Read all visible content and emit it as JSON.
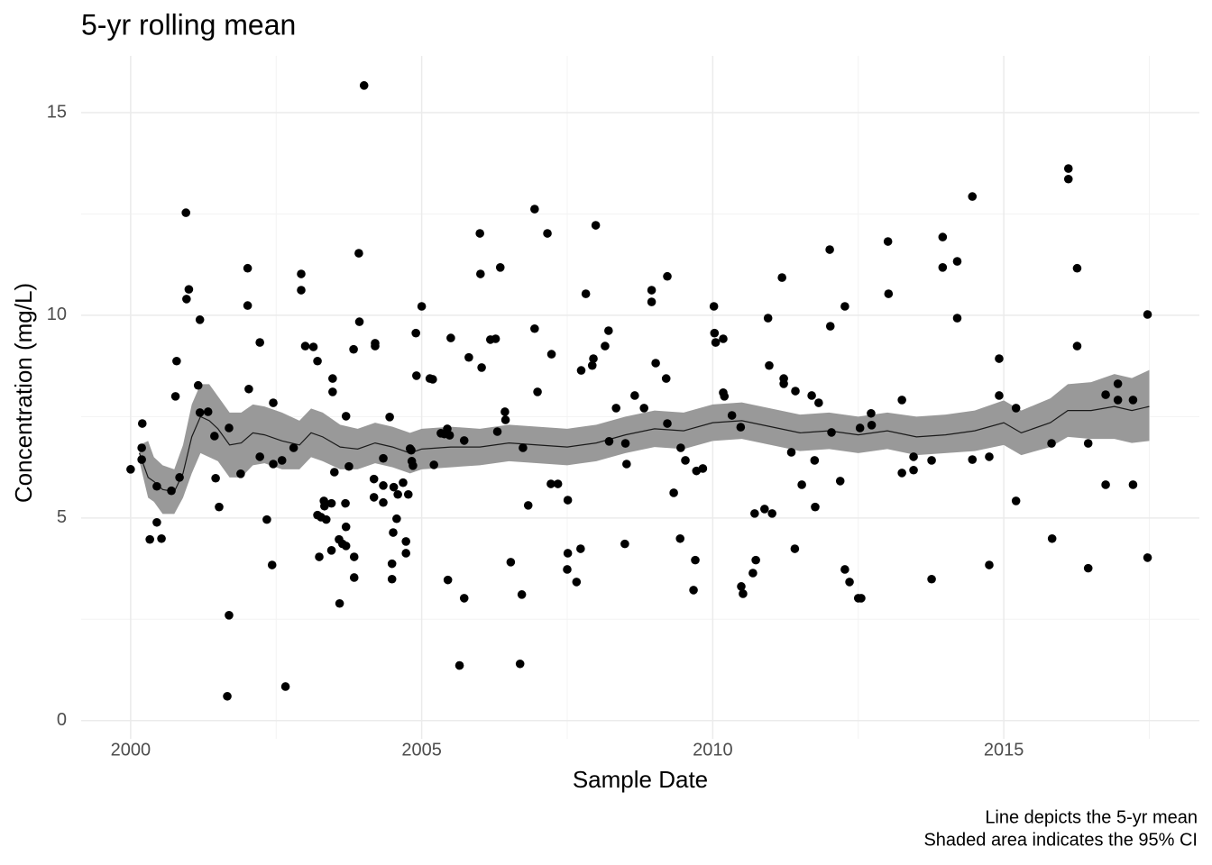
{
  "chart_data": {
    "type": "scatter",
    "title": "5-yr rolling mean",
    "xlabel": "Sample Date",
    "ylabel": "Concentration (mg/L)",
    "caption": [
      "Line depicts the 5-yr mean",
      "Shaded area indicates the 95% CI"
    ],
    "xlim": [
      1999.15,
      2018.36
    ],
    "ylim": [
      -0.45,
      16.4
    ],
    "xticks": [
      2000,
      2005,
      2010,
      2015
    ],
    "yticks": [
      0,
      5,
      10,
      15
    ],
    "grid": true,
    "color": "#000000",
    "x": [
      2000.0,
      2000.19,
      2000.19,
      2000.2,
      2000.33,
      2000.45,
      2000.45,
      2000.53,
      2000.7,
      2000.77,
      2000.79,
      2000.84,
      2000.95,
      2000.96,
      2001.0,
      2001.16,
      2001.19,
      2001.19,
      2001.33,
      2001.44,
      2001.46,
      2001.52,
      2001.69,
      2001.69,
      2001.66,
      2001.89,
      2002.01,
      2002.01,
      2002.03,
      2002.22,
      2002.22,
      2002.34,
      2002.43,
      2002.45,
      2002.45,
      2002.6,
      2002.66,
      2002.8,
      2002.93,
      2002.93,
      2003.0,
      2003.14,
      2003.21,
      2003.21,
      2003.24,
      2003.27,
      2003.32,
      2003.33,
      2003.36,
      2003.45,
      2003.45,
      2003.47,
      2003.47,
      2003.5,
      2003.58,
      2003.59,
      2003.64,
      2003.69,
      2003.7,
      2003.7,
      2003.7,
      2003.75,
      2003.83,
      2003.84,
      2003.84,
      2003.92,
      2003.93,
      2004.01,
      2004.18,
      2004.18,
      2004.2,
      2004.2,
      2004.34,
      2004.34,
      2004.34,
      2004.45,
      2004.49,
      2004.49,
      2004.51,
      2004.52,
      2004.57,
      2004.59,
      2004.68,
      2004.73,
      2004.73,
      2004.77,
      2004.8,
      2004.82,
      2004.83,
      2004.85,
      2004.9,
      2004.91,
      2005.0,
      2005.14,
      2005.19,
      2005.21,
      2005.33,
      2005.39,
      2005.44,
      2005.45,
      2005.48,
      2005.5,
      2005.65,
      2005.73,
      2005.73,
      2005.81,
      2006.0,
      2006.01,
      2006.03,
      2006.18,
      2006.27,
      2006.3,
      2006.35,
      2006.43,
      2006.44,
      2006.53,
      2006.69,
      2006.72,
      2006.74,
      2006.83,
      2006.94,
      2006.94,
      2006.99,
      2007.16,
      2007.22,
      2007.23,
      2007.34,
      2007.5,
      2007.51,
      2007.51,
      2007.66,
      2007.73,
      2007.74,
      2007.82,
      2007.93,
      2007.95,
      2007.99,
      2008.15,
      2008.21,
      2008.22,
      2008.34,
      2008.49,
      2008.5,
      2008.52,
      2008.66,
      2008.82,
      2008.95,
      2008.95,
      2009.02,
      2009.2,
      2009.22,
      2009.22,
      2009.33,
      2009.44,
      2009.45,
      2009.53,
      2009.67,
      2009.7,
      2009.72,
      2009.83,
      2010.02,
      2010.03,
      2010.05,
      2010.18,
      2010.18,
      2010.2,
      2010.33,
      2010.48,
      2010.49,
      2010.52,
      2010.69,
      2010.72,
      2010.74,
      2010.89,
      2010.95,
      2010.97,
      2011.02,
      2011.19,
      2011.22,
      2011.22,
      2011.35,
      2011.41,
      2011.42,
      2011.53,
      2011.7,
      2011.75,
      2011.76,
      2011.82,
      2012.01,
      2012.02,
      2012.04,
      2012.19,
      2012.27,
      2012.27,
      2012.35,
      2012.5,
      2012.55,
      2012.53,
      2012.72,
      2012.73,
      2013.01,
      2013.02,
      2013.25,
      2013.25,
      2013.45,
      2013.45,
      2013.76,
      2013.76,
      2013.95,
      2013.95,
      2014.2,
      2014.2,
      2014.46,
      2014.46,
      2014.75,
      2014.75,
      2014.92,
      2014.92,
      2015.21,
      2015.21,
      2015.82,
      2015.83,
      2016.11,
      2016.11,
      2016.26,
      2016.26,
      2016.45,
      2016.45,
      2016.75,
      2016.75,
      2016.96,
      2016.96,
      2017.22,
      2017.22,
      2017.47,
      2017.47
    ],
    "values": [
      6.2,
      6.44,
      6.73,
      7.33,
      4.47,
      4.89,
      5.78,
      4.49,
      5.67,
      8.0,
      8.87,
      6.0,
      12.53,
      10.4,
      10.64,
      8.27,
      9.89,
      7.6,
      7.62,
      7.02,
      5.98,
      5.27,
      7.22,
      2.6,
      0.6,
      6.09,
      11.16,
      10.24,
      8.18,
      6.51,
      9.33,
      4.96,
      3.84,
      6.33,
      7.84,
      6.42,
      0.84,
      6.73,
      11.02,
      10.62,
      9.24,
      9.22,
      8.87,
      5.07,
      4.04,
      5.02,
      5.42,
      5.29,
      4.96,
      5.36,
      4.2,
      8.11,
      8.44,
      6.13,
      4.47,
      2.89,
      4.36,
      5.36,
      4.78,
      4.31,
      7.51,
      6.27,
      9.16,
      3.53,
      4.04,
      11.53,
      9.84,
      15.67,
      5.96,
      5.51,
      9.24,
      9.31,
      6.47,
      5.8,
      5.38,
      7.49,
      3.49,
      3.87,
      4.64,
      5.76,
      4.98,
      5.58,
      5.87,
      4.13,
      4.42,
      5.58,
      6.71,
      6.67,
      6.4,
      6.29,
      9.56,
      8.51,
      10.22,
      8.44,
      8.42,
      6.31,
      7.09,
      7.07,
      7.2,
      3.47,
      7.04,
      9.44,
      1.36,
      6.91,
      3.02,
      8.96,
      12.02,
      11.02,
      8.71,
      9.4,
      9.42,
      7.13,
      11.18,
      7.62,
      7.42,
      3.91,
      1.4,
      3.11,
      6.73,
      5.31,
      12.62,
      9.67,
      8.11,
      12.02,
      5.84,
      9.04,
      5.84,
      3.73,
      4.13,
      5.44,
      3.42,
      4.24,
      8.64,
      10.53,
      8.76,
      8.93,
      12.22,
      9.24,
      9.62,
      6.89,
      7.71,
      4.36,
      6.84,
      6.33,
      8.02,
      7.71,
      10.62,
      10.33,
      8.82,
      8.44,
      10.96,
      7.33,
      5.62,
      4.49,
      6.73,
      6.42,
      3.22,
      3.96,
      6.16,
      6.22,
      10.22,
      9.56,
      9.33,
      9.42,
      8.09,
      8.0,
      7.53,
      7.24,
      3.31,
      3.13,
      3.64,
      5.11,
      3.96,
      5.22,
      9.93,
      8.76,
      5.11,
      10.93,
      8.44,
      8.31,
      6.62,
      4.24,
      8.13,
      5.82,
      8.02,
      6.42,
      5.27,
      7.84,
      11.62,
      9.73,
      7.11,
      5.91,
      10.22,
      3.73,
      3.42,
      3.02,
      3.02,
      7.22,
      7.58,
      7.29,
      11.82,
      10.53,
      7.91,
      6.11,
      6.51,
      6.18,
      6.42,
      3.49,
      11.93,
      11.18,
      11.33,
      9.93,
      12.93,
      6.44,
      3.84,
      6.51,
      8.93,
      8.02,
      7.71,
      5.42,
      6.84,
      4.49,
      13.62,
      13.36,
      11.16,
      9.24,
      6.84,
      3.76,
      8.04,
      5.82,
      8.31,
      7.91,
      7.91,
      5.82,
      10.02,
      4.02
    ],
    "line": {
      "color": "#1a1a1a",
      "fill": "#999999",
      "x": [
        2000.15,
        2000.3,
        2000.4,
        2000.55,
        2000.75,
        2000.9,
        2001.05,
        2001.2,
        2001.35,
        2001.5,
        2001.7,
        2001.9,
        2002.1,
        2002.3,
        2002.6,
        2002.9,
        2003.1,
        2003.3,
        2003.6,
        2003.9,
        2004.2,
        2004.5,
        2004.8,
        2005.0,
        2005.5,
        2006.0,
        2006.5,
        2007.0,
        2007.5,
        2008.0,
        2008.5,
        2009.0,
        2009.5,
        2010.0,
        2010.5,
        2011.0,
        2011.5,
        2012.0,
        2012.5,
        2013.0,
        2013.5,
        2014.0,
        2014.5,
        2015.0,
        2015.3,
        2015.8,
        2016.1,
        2016.5,
        2016.9,
        2017.2,
        2017.5
      ],
      "values": [
        6.6,
        6.0,
        5.9,
        5.7,
        5.65,
        6.1,
        7.0,
        7.5,
        7.4,
        7.2,
        6.8,
        6.85,
        7.1,
        7.05,
        6.9,
        6.8,
        7.1,
        7.0,
        6.75,
        6.7,
        6.85,
        6.75,
        6.6,
        6.7,
        6.75,
        6.75,
        6.85,
        6.8,
        6.75,
        6.85,
        7.05,
        7.2,
        7.15,
        7.35,
        7.4,
        7.25,
        7.1,
        7.15,
        7.05,
        7.15,
        7.0,
        7.05,
        7.15,
        7.35,
        7.1,
        7.35,
        7.65,
        7.65,
        7.75,
        7.65,
        7.75
      ],
      "lower": [
        6.4,
        5.5,
        5.4,
        5.1,
        5.1,
        5.5,
        6.1,
        6.6,
        6.5,
        6.4,
        6.0,
        6.0,
        6.3,
        6.35,
        6.2,
        6.2,
        6.5,
        6.4,
        6.2,
        6.2,
        6.35,
        6.25,
        6.1,
        6.2,
        6.25,
        6.3,
        6.4,
        6.35,
        6.3,
        6.4,
        6.6,
        6.75,
        6.7,
        6.9,
        6.95,
        6.8,
        6.65,
        6.7,
        6.6,
        6.7,
        6.55,
        6.6,
        6.65,
        6.8,
        6.55,
        6.75,
        7.0,
        6.95,
        6.95,
        6.85,
        6.9
      ],
      "upper": [
        6.8,
        6.9,
        6.5,
        6.3,
        6.2,
        6.8,
        7.8,
        8.3,
        8.3,
        8.0,
        7.6,
        7.6,
        7.8,
        7.75,
        7.6,
        7.4,
        7.7,
        7.6,
        7.3,
        7.2,
        7.35,
        7.25,
        7.1,
        7.2,
        7.25,
        7.2,
        7.3,
        7.25,
        7.2,
        7.3,
        7.5,
        7.65,
        7.6,
        7.8,
        7.85,
        7.7,
        7.55,
        7.6,
        7.5,
        7.6,
        7.5,
        7.55,
        7.65,
        7.9,
        7.65,
        7.95,
        8.3,
        8.35,
        8.55,
        8.45,
        8.65
      ]
    }
  }
}
